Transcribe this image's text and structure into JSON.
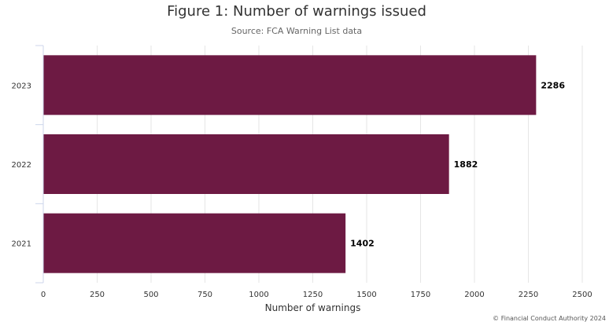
{
  "page": {
    "title": "Figure 1: Number of warnings issued",
    "subtitle": "Source: FCA Warning List data",
    "credit": "© Financial Conduct Authority 2024"
  },
  "colors": {
    "bar": "#6d1a43",
    "grid": "#e6e6e6",
    "axis": "#ccd6eb"
  },
  "chart_data": {
    "type": "bar",
    "orientation": "horizontal",
    "title": "Figure 1: Number of warnings issued",
    "subtitle": "Source: FCA Warning List data",
    "xlabel": "Number of warnings",
    "ylabel": "",
    "categories": [
      "2023",
      "2022",
      "2021"
    ],
    "values": [
      2286,
      1882,
      1402
    ],
    "data_labels": [
      "2286",
      "1882",
      "1402"
    ],
    "xlim": [
      0,
      2500
    ],
    "xticks": [
      0,
      250,
      500,
      750,
      1000,
      1250,
      1500,
      1750,
      2000,
      2250,
      2500
    ],
    "grid": true,
    "legend": "none"
  }
}
